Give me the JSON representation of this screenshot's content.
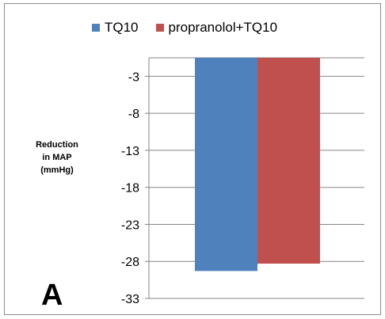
{
  "panel_label": "A",
  "chart_data": {
    "type": "bar",
    "title": "",
    "xlabel": "",
    "ylabel_lines": [
      "Reduction",
      "in MAP",
      "(mmHg)"
    ],
    "ylim": [
      -33,
      -0.5
    ],
    "ytick_values": [
      -3,
      -8,
      -13,
      -18,
      -23,
      -28,
      -33
    ],
    "ytick_labels": [
      "-3",
      "-8",
      "-13",
      "-18",
      "-23",
      "-28",
      "-33"
    ],
    "grid": true,
    "legend_position": "top",
    "categories": [
      ""
    ],
    "series": [
      {
        "name": "TQ10",
        "color": "#4f81bd",
        "values": [
          -29.3
        ]
      },
      {
        "name": "propranolol+TQ10",
        "color": "#c0504d",
        "values": [
          -28.3
        ]
      }
    ]
  }
}
